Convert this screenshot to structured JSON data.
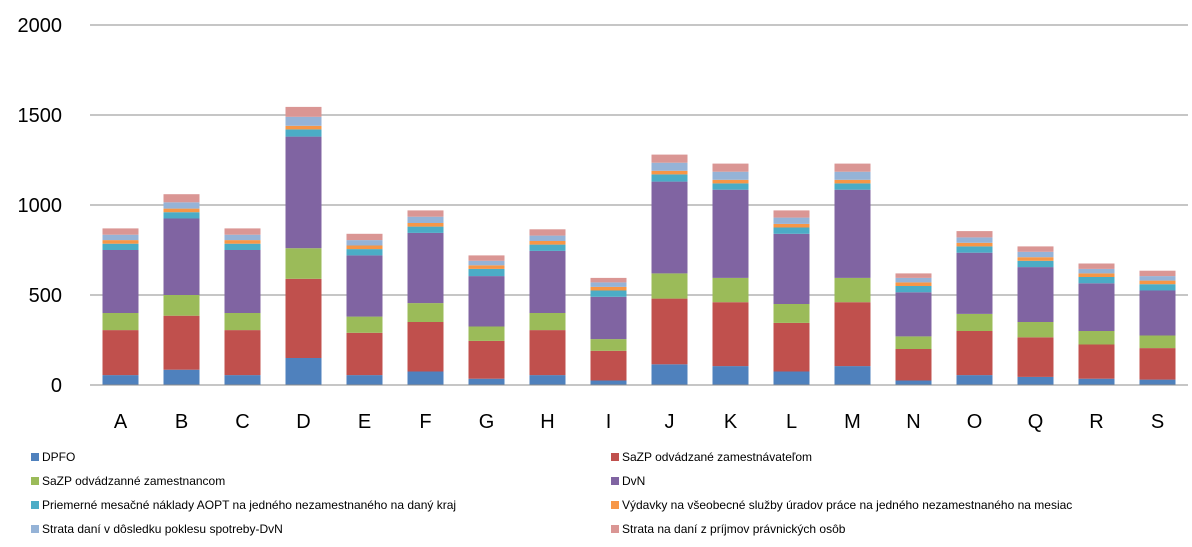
{
  "chart_data": {
    "type": "bar",
    "stacked": true,
    "categories": [
      "A",
      "B",
      "C",
      "D",
      "E",
      "F",
      "G",
      "H",
      "I",
      "J",
      "K",
      "L",
      "M",
      "N",
      "O",
      "Q",
      "R",
      "S"
    ],
    "ylim": [
      0,
      2000
    ],
    "yticks": [
      0,
      500,
      1000,
      1500,
      2000
    ],
    "grid": true,
    "legend_position": "bottom",
    "series": [
      {
        "name": "DPFO",
        "color": "#4f81bd",
        "values": [
          55,
          85,
          55,
          150,
          55,
          75,
          35,
          55,
          25,
          115,
          105,
          75,
          105,
          25,
          55,
          45,
          35,
          30
        ]
      },
      {
        "name": "SaZP odvádzané zamestnávateľom",
        "color": "#c0504d",
        "values": [
          250,
          300,
          250,
          440,
          235,
          275,
          210,
          250,
          165,
          365,
          355,
          270,
          355,
          175,
          245,
          220,
          190,
          175
        ]
      },
      {
        "name": "SaZP odvádzanné zamestnancom",
        "color": "#9bbb59",
        "values": [
          95,
          115,
          95,
          170,
          90,
          105,
          80,
          95,
          65,
          140,
          135,
          105,
          135,
          70,
          95,
          85,
          75,
          70
        ]
      },
      {
        "name": "DvN",
        "color": "#8064a2",
        "values": [
          350,
          425,
          350,
          620,
          340,
          390,
          280,
          345,
          235,
          510,
          490,
          390,
          490,
          245,
          340,
          305,
          265,
          250
        ]
      },
      {
        "name": "Priemerné mesačné náklady AOPT na jedného nezamestnaného na daný kraj",
        "color": "#4bacc6",
        "values": [
          35,
          35,
          35,
          40,
          35,
          35,
          40,
          35,
          35,
          40,
          35,
          35,
          35,
          35,
          35,
          35,
          35,
          35
        ]
      },
      {
        "name": "Výdavky na všeobecné služby úradov práce na jedného nezamestnaného na mesiac",
        "color": "#f79646",
        "values": [
          20,
          20,
          20,
          20,
          20,
          20,
          20,
          20,
          20,
          20,
          20,
          20,
          20,
          20,
          20,
          20,
          20,
          20
        ]
      },
      {
        "name": "Strata daní v dôsledku poklesu spotreby-DvN",
        "color": "#95b3d7",
        "values": [
          30,
          35,
          30,
          50,
          30,
          35,
          25,
          30,
          25,
          45,
          45,
          35,
          45,
          25,
          30,
          30,
          25,
          25
        ]
      },
      {
        "name": "Strata na daní z príjmov právnických osôb",
        "color": "#da9694",
        "values": [
          35,
          45,
          35,
          55,
          35,
          35,
          30,
          35,
          25,
          45,
          45,
          40,
          45,
          25,
          35,
          30,
          30,
          30
        ]
      }
    ]
  }
}
